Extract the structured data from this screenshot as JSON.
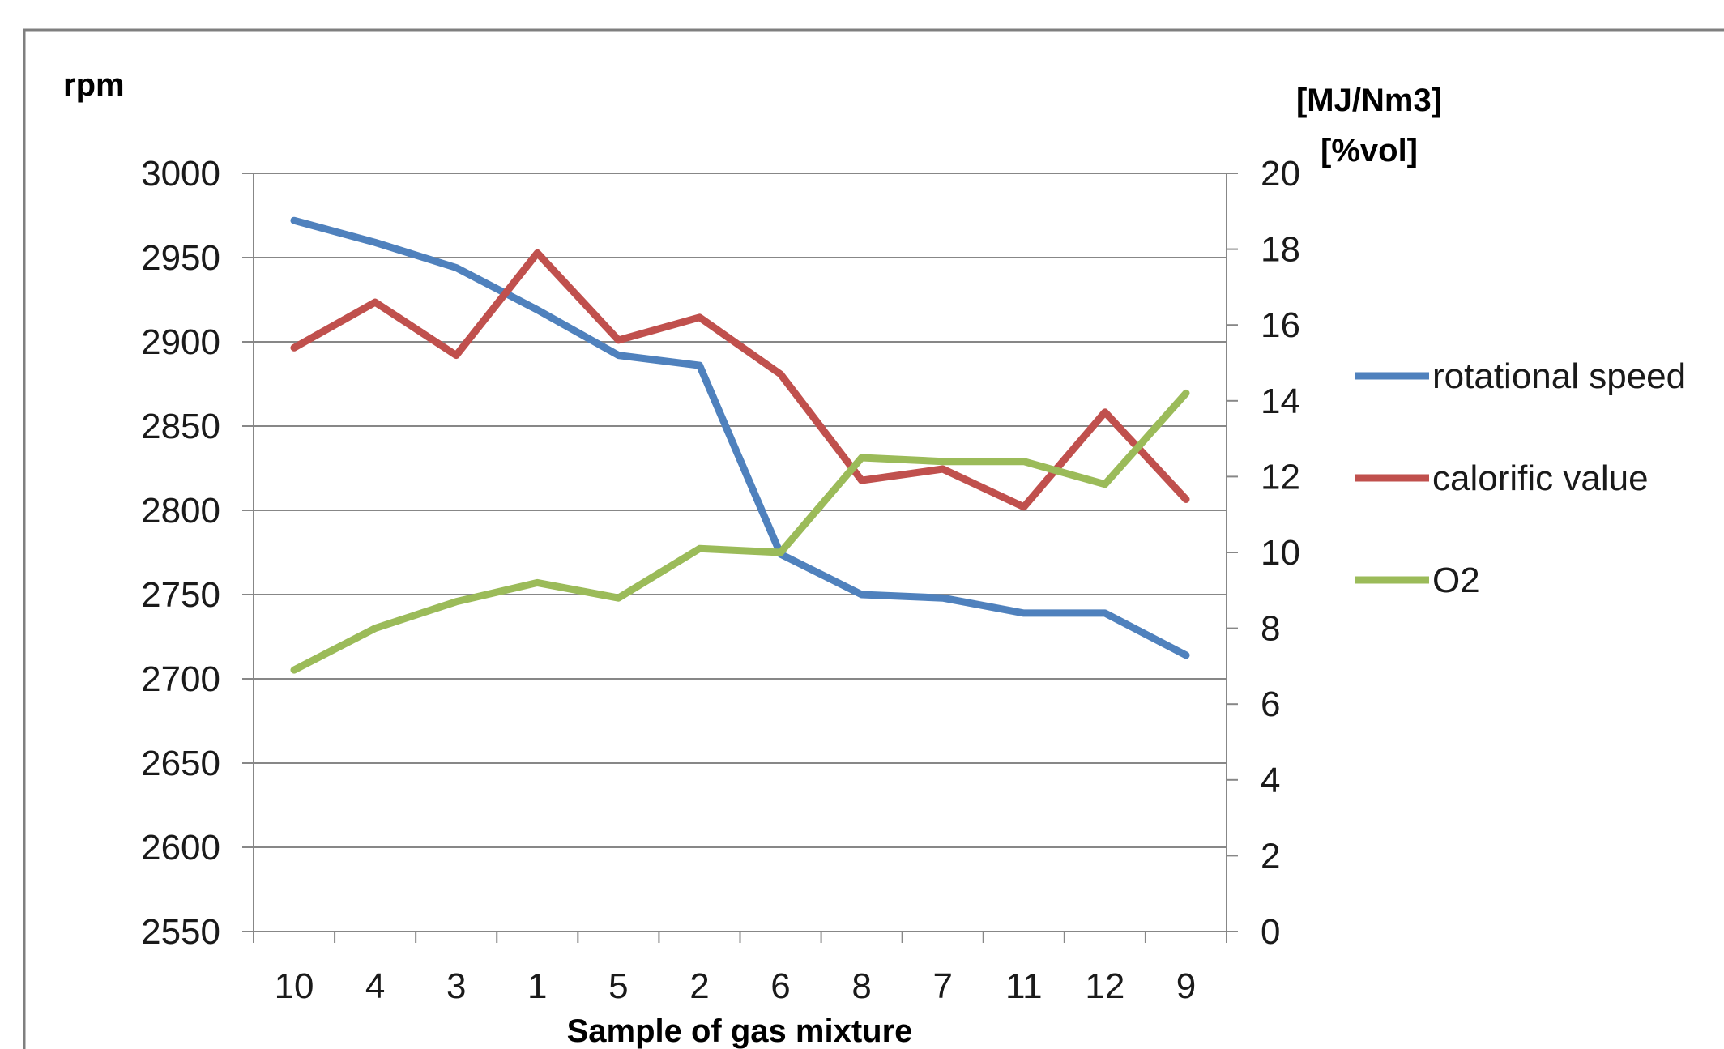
{
  "chart_data": {
    "type": "line",
    "categories": [
      "10",
      "4",
      "3",
      "1",
      "5",
      "2",
      "6",
      "8",
      "7",
      "11",
      "12",
      "9"
    ],
    "xlabel": "Sample of gas mixture",
    "ylabel": "rpm",
    "y2label_line1": "[MJ/Nm3]",
    "y2label_line2": "[%vol]",
    "ylim": [
      2550,
      3000
    ],
    "y_ticks": [
      3000,
      2950,
      2900,
      2850,
      2800,
      2750,
      2700,
      2650,
      2600,
      2550
    ],
    "y2lim": [
      0,
      20
    ],
    "y2_ticks": [
      20,
      18,
      16,
      14,
      12,
      10,
      8,
      6,
      4,
      2,
      0
    ],
    "grid": true,
    "legend_position": "right",
    "series": [
      {
        "name": "rotational speed",
        "axis": "left",
        "color": "#4f81bd",
        "values": [
          2972,
          2959,
          2944,
          2919,
          2892,
          2886,
          2774,
          2750,
          2748,
          2739,
          2739,
          2714
        ]
      },
      {
        "name": "calorific value",
        "axis": "right",
        "color": "#c0504d",
        "values": [
          15.4,
          16.6,
          15.2,
          17.9,
          15.6,
          16.2,
          14.7,
          11.9,
          12.2,
          11.2,
          13.7,
          11.4
        ]
      },
      {
        "name": "O2",
        "axis": "right",
        "color": "#9bbb59",
        "values": [
          6.9,
          8.0,
          8.7,
          9.2,
          8.8,
          10.1,
          10.0,
          12.5,
          12.4,
          12.4,
          11.8,
          14.2
        ]
      }
    ]
  }
}
